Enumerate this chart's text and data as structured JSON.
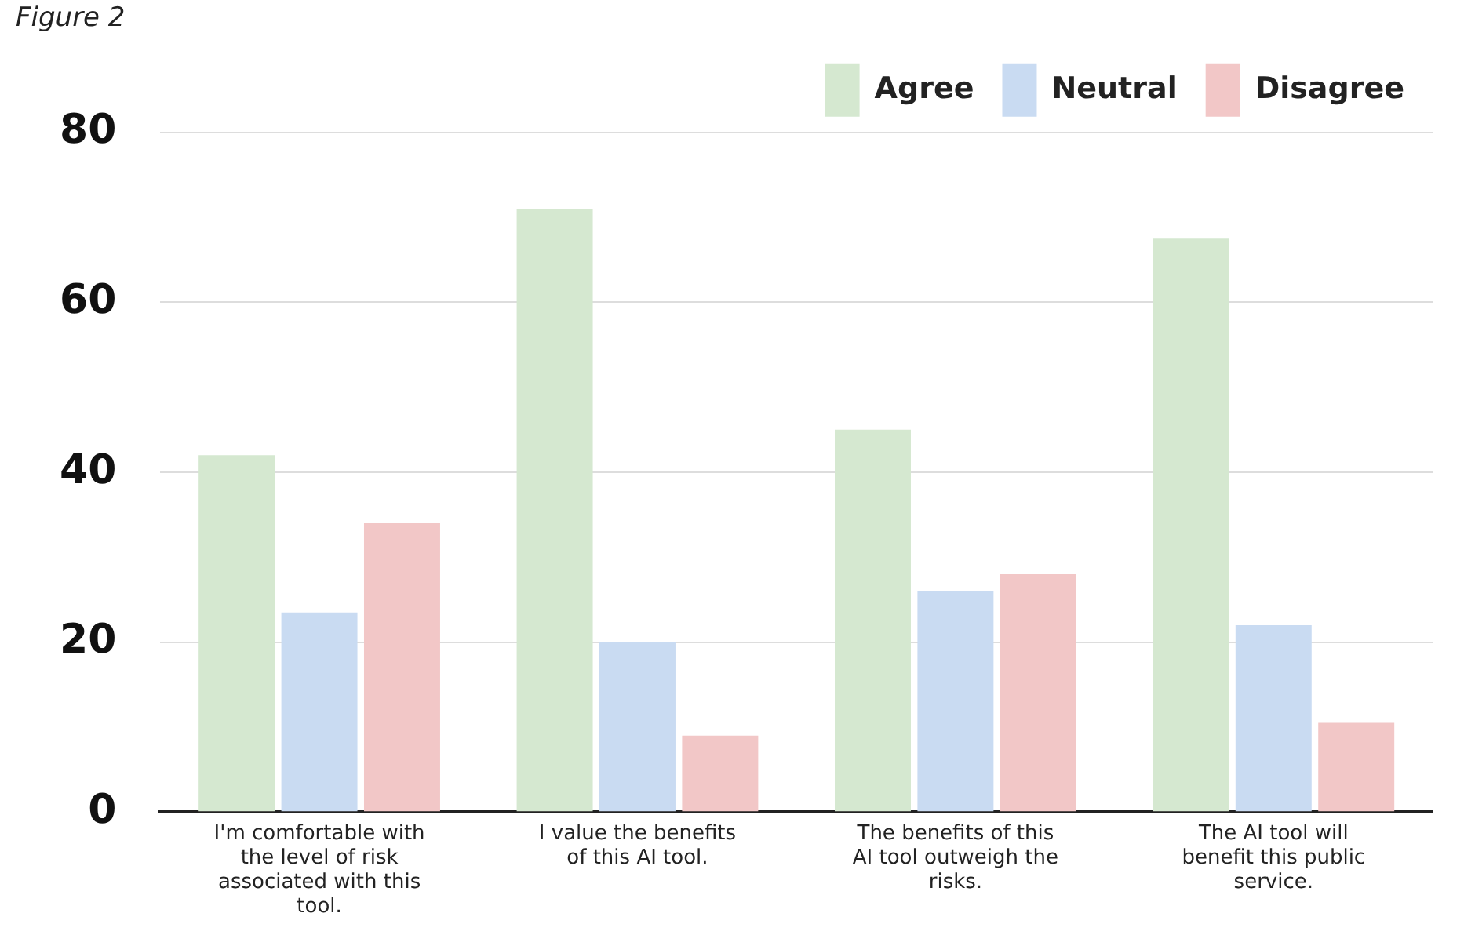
{
  "chart_data": {
    "type": "bar",
    "title": "Figure 2",
    "categories": [
      "I'm comfortable with the level of risk associated with this tool.",
      "I value the benefits of this AI tool.",
      "The benefits of this AI tool outweigh the risks.",
      "The AI tool will benefit this public service."
    ],
    "series": [
      {
        "name": "Agree",
        "color": "#d5e8d0",
        "values": [
          42,
          71,
          45,
          67.5
        ]
      },
      {
        "name": "Neutral",
        "color": "#c9dbf2",
        "values": [
          23.5,
          20,
          26,
          22
        ]
      },
      {
        "name": "Disagree",
        "color": "#f2c7c7",
        "values": [
          34,
          9,
          28,
          10.5
        ]
      }
    ],
    "ylim": [
      0,
      80
    ],
    "yticks": [
      0,
      20,
      40,
      60,
      80
    ],
    "grid": "y",
    "legend": "top right"
  }
}
